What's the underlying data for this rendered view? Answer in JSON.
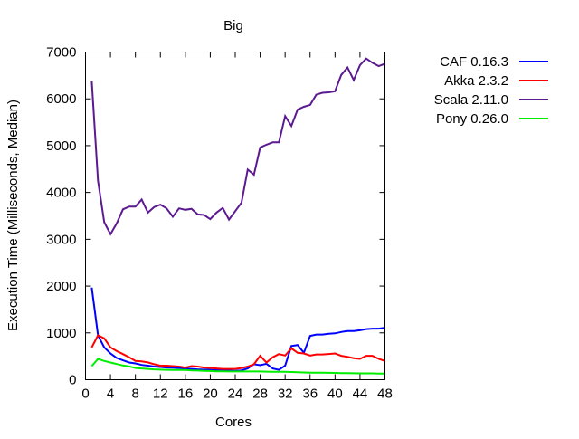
{
  "chart_data": {
    "type": "line",
    "title": "Big",
    "xlabel": "Cores",
    "ylabel": "Execution Time (Milliseconds, Median)",
    "xlim": [
      0,
      48
    ],
    "ylim": [
      0,
      7000
    ],
    "xticks": [
      0,
      4,
      8,
      12,
      16,
      20,
      24,
      28,
      32,
      36,
      40,
      44,
      48
    ],
    "yticks": [
      0,
      1000,
      2000,
      3000,
      4000,
      5000,
      6000,
      7000
    ],
    "grid": false,
    "legend_position": "outside-top-right",
    "x": [
      1,
      2,
      3,
      4,
      5,
      6,
      7,
      8,
      9,
      10,
      11,
      12,
      13,
      14,
      15,
      16,
      17,
      18,
      19,
      20,
      21,
      22,
      23,
      24,
      25,
      26,
      27,
      28,
      29,
      30,
      31,
      32,
      33,
      34,
      35,
      36,
      37,
      38,
      39,
      40,
      41,
      42,
      43,
      44,
      45,
      46,
      47,
      48
    ],
    "series": [
      {
        "name": "CAF 0.16.3",
        "color": "#0000ff",
        "values": [
          1967,
          950,
          690,
          560,
          464,
          413,
          368,
          348,
          316,
          300,
          280,
          270,
          260,
          255,
          250,
          240,
          230,
          220,
          215,
          210,
          205,
          200,
          195,
          190,
          200,
          240,
          330,
          310,
          340,
          240,
          210,
          300,
          720,
          740,
          574,
          935,
          965,
          965,
          980,
          990,
          1020,
          1040,
          1040,
          1055,
          1080,
          1090,
          1090,
          1110
        ]
      },
      {
        "name": "Akka 2.3.2",
        "color": "#ff0000",
        "values": [
          690,
          947,
          883,
          690,
          612,
          548,
          477,
          400,
          390,
          370,
          330,
          300,
          300,
          290,
          280,
          260,
          290,
          280,
          260,
          250,
          240,
          230,
          230,
          230,
          250,
          280,
          330,
          510,
          367,
          480,
          548,
          516,
          670,
          574,
          560,
          516,
          540,
          540,
          550,
          560,
          510,
          490,
          460,
          445,
          510,
          510,
          445,
          400
        ]
      },
      {
        "name": "Scala 2.11.0",
        "color": "#5b1a8f",
        "values": [
          6377,
          4250,
          3365,
          3110,
          3340,
          3640,
          3700,
          3700,
          3850,
          3570,
          3690,
          3740,
          3660,
          3480,
          3660,
          3630,
          3650,
          3530,
          3520,
          3430,
          3570,
          3670,
          3420,
          3600,
          3780,
          4490,
          4380,
          4960,
          5020,
          5070,
          5070,
          5630,
          5420,
          5770,
          5830,
          5870,
          6090,
          6130,
          6140,
          6160,
          6510,
          6670,
          6400,
          6720,
          6860,
          6770,
          6700,
          6750
        ]
      },
      {
        "name": "Pony 0.26.0",
        "color": "#00ee00",
        "values": [
          290,
          445,
          400,
          368,
          335,
          303,
          285,
          250,
          240,
          230,
          220,
          215,
          210,
          206,
          206,
          206,
          200,
          195,
          190,
          185,
          180,
          178,
          176,
          175,
          175,
          175,
          175,
          175,
          172,
          170,
          170,
          168,
          165,
          160,
          155,
          150,
          148,
          148,
          146,
          145,
          142,
          140,
          138,
          135,
          135,
          135,
          132,
          130
        ]
      }
    ]
  }
}
